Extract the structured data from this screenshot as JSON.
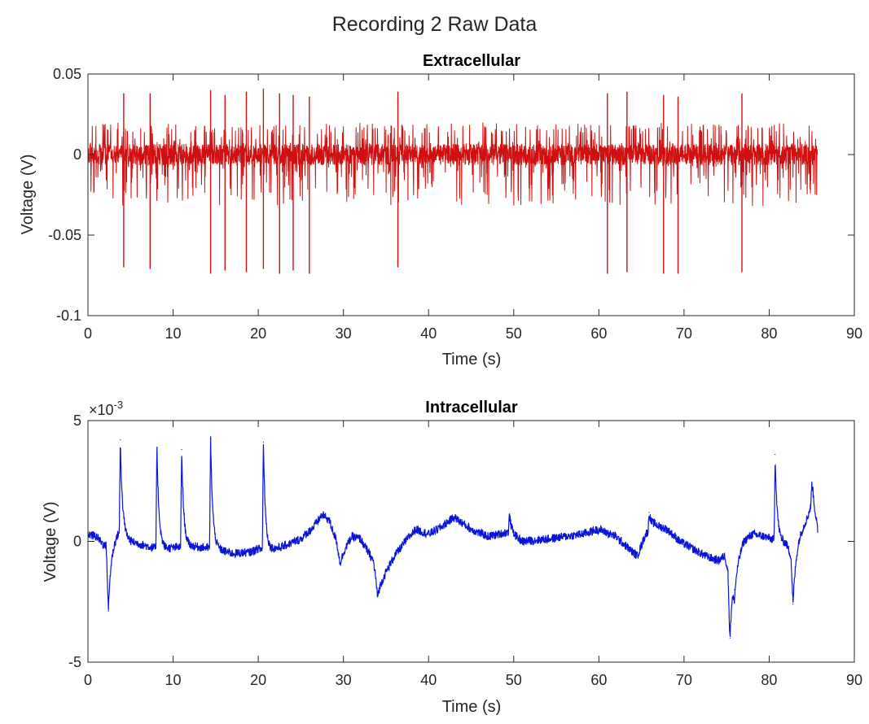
{
  "figure": {
    "title": "Recording 2 Raw Data"
  },
  "chart_data": [
    {
      "type": "line",
      "title": "Extracellular",
      "xlabel": "Time (s)",
      "ylabel": "Voltage (V)",
      "xlim": [
        0,
        90
      ],
      "ylim": [
        -0.1,
        0.05
      ],
      "xticks": [
        0,
        10,
        20,
        30,
        40,
        50,
        60,
        70,
        80,
        90
      ],
      "xtick_labels": [
        "0",
        "10",
        "20",
        "30",
        "40",
        "50",
        "60",
        "70",
        "80",
        "90"
      ],
      "yticks": [
        0.05,
        0,
        -0.05,
        -0.1
      ],
      "ytick_labels": [
        "0.05",
        "0",
        "-0.05",
        "-0.1"
      ],
      "color": "#d01010",
      "series": [
        {
          "name": "Extracellular",
          "x_range": [
            0,
            85.7
          ],
          "baseline_noise_amplitude": 0.012,
          "spikes": [
            {
              "t": 4.2,
              "peak": 0.038,
              "trough": -0.07
            },
            {
              "t": 7.3,
              "peak": 0.038,
              "trough": -0.071
            },
            {
              "t": 14.4,
              "peak": 0.04,
              "trough": -0.074
            },
            {
              "t": 16.1,
              "peak": 0.037,
              "trough": -0.072
            },
            {
              "t": 18.6,
              "peak": 0.039,
              "trough": -0.073
            },
            {
              "t": 20.6,
              "peak": 0.041,
              "trough": -0.071
            },
            {
              "t": 22.5,
              "peak": 0.038,
              "trough": -0.074
            },
            {
              "t": 24.1,
              "peak": 0.037,
              "trough": -0.072
            },
            {
              "t": 26.0,
              "peak": 0.036,
              "trough": -0.074
            },
            {
              "t": 36.4,
              "peak": 0.039,
              "trough": -0.07
            },
            {
              "t": 61.0,
              "peak": 0.038,
              "trough": -0.074
            },
            {
              "t": 63.3,
              "peak": 0.039,
              "trough": -0.073
            },
            {
              "t": 67.6,
              "peak": 0.037,
              "trough": -0.074
            },
            {
              "t": 69.3,
              "peak": 0.036,
              "trough": -0.074
            },
            {
              "t": 76.8,
              "peak": 0.038,
              "trough": -0.073
            }
          ]
        }
      ]
    },
    {
      "type": "line",
      "title": "Intracellular",
      "xlabel": "Time (s)",
      "ylabel": "Voltage (V)",
      "exponent_label": "×10",
      "exponent_power": "-3",
      "xlim": [
        0,
        90
      ],
      "ylim": [
        -5,
        5
      ],
      "y_scale": 0.001,
      "xticks": [
        0,
        10,
        20,
        30,
        40,
        50,
        60,
        70,
        80,
        90
      ],
      "xtick_labels": [
        "0",
        "10",
        "20",
        "30",
        "40",
        "50",
        "60",
        "70",
        "80",
        "90"
      ],
      "yticks": [
        5,
        0,
        -5
      ],
      "ytick_labels": [
        "5",
        "0",
        "-5"
      ],
      "color": "#0a14d6",
      "series": [
        {
          "name": "Intracellular",
          "x_range": [
            0,
            85.7
          ],
          "noise_amplitude": 0.18,
          "baseline_points": [
            [
              0,
              0.3
            ],
            [
              1.0,
              0.2
            ],
            [
              2.0,
              -0.2
            ],
            [
              3.0,
              0.05
            ],
            [
              3.6,
              0.4
            ],
            [
              5.0,
              0.0
            ],
            [
              7.5,
              -0.25
            ],
            [
              9,
              -0.3
            ],
            [
              10.5,
              -0.25
            ],
            [
              12,
              -0.2
            ],
            [
              13.5,
              -0.25
            ],
            [
              15,
              -0.3
            ],
            [
              17,
              -0.5
            ],
            [
              19,
              -0.45
            ],
            [
              20,
              -0.3
            ],
            [
              21,
              -0.4
            ],
            [
              23,
              -0.2
            ],
            [
              25,
              0.1
            ],
            [
              26.5,
              0.6
            ],
            [
              27.5,
              1.1
            ],
            [
              28.3,
              0.9
            ],
            [
              29.2,
              0.0
            ],
            [
              29.6,
              -0.9
            ],
            [
              30.2,
              -0.3
            ],
            [
              31,
              0.2
            ],
            [
              32,
              0.1
            ],
            [
              33.5,
              -0.8
            ],
            [
              34.0,
              -1.9
            ],
            [
              34.5,
              -1.6
            ],
            [
              36,
              -0.6
            ],
            [
              37.5,
              0.1
            ],
            [
              38.5,
              0.5
            ],
            [
              40,
              0.3
            ],
            [
              41.5,
              0.6
            ],
            [
              43,
              1.0
            ],
            [
              45,
              0.5
            ],
            [
              47,
              0.2
            ],
            [
              49.5,
              0.4
            ],
            [
              51,
              0.0
            ],
            [
              54,
              0.1
            ],
            [
              56,
              0.2
            ],
            [
              58,
              0.3
            ],
            [
              60,
              0.5
            ],
            [
              62,
              0.2
            ],
            [
              63.5,
              -0.3
            ],
            [
              64.5,
              -0.6
            ],
            [
              65.5,
              0.3
            ],
            [
              66.5,
              0.7
            ],
            [
              68,
              0.5
            ],
            [
              69.5,
              0.0
            ],
            [
              71,
              -0.3
            ],
            [
              72.5,
              -0.6
            ],
            [
              74,
              -0.8
            ],
            [
              74.8,
              -0.6
            ],
            [
              75.3,
              -1.5
            ],
            [
              76,
              -1.0
            ],
            [
              77,
              0.0
            ],
            [
              78,
              0.3
            ],
            [
              79.5,
              0.2
            ],
            [
              81,
              0.0
            ],
            [
              82,
              -0.1
            ],
            [
              82.8,
              -0.8
            ],
            [
              83.5,
              0.2
            ],
            [
              84.5,
              1.0
            ],
            [
              85.1,
              1.7
            ],
            [
              85.7,
              0.4
            ]
          ],
          "events": [
            {
              "t": 2.4,
              "v": -2.9
            },
            {
              "t": 3.8,
              "v": 4.2
            },
            {
              "t": 8.1,
              "v": 3.9
            },
            {
              "t": 11.0,
              "v": 3.8
            },
            {
              "t": 14.4,
              "v": 4.3
            },
            {
              "t": 20.6,
              "v": 4.1
            },
            {
              "t": 34.0,
              "v": -2.3
            },
            {
              "t": 49.5,
              "v": 1.1
            },
            {
              "t": 65.9,
              "v": 1.2
            },
            {
              "t": 75.4,
              "v": -4.0
            },
            {
              "t": 75.9,
              "v": -2.0
            },
            {
              "t": 80.7,
              "v": 3.6
            },
            {
              "t": 82.8,
              "v": -2.6
            },
            {
              "t": 85.0,
              "v": 2.4
            }
          ]
        }
      ]
    }
  ]
}
